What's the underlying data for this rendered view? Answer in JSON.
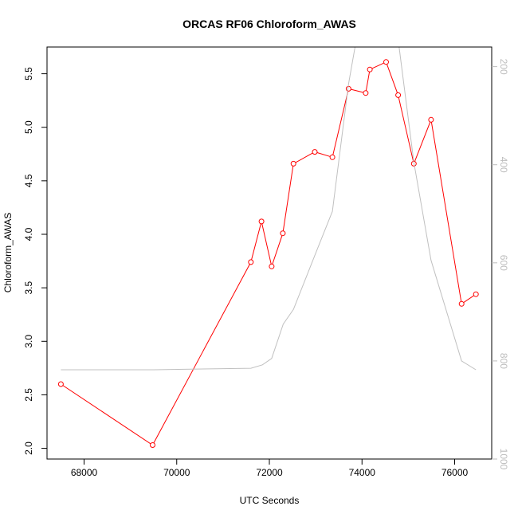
{
  "chart_data": {
    "type": "line",
    "title": "ORCAS RF06 Chloroform_AWAS",
    "xlabel": "UTC Seconds",
    "ylabel": "Chloroform_AWAS",
    "xlim": [
      67200,
      76800
    ],
    "ylim": [
      1.9,
      5.75
    ],
    "xticks": [
      68000,
      70000,
      72000,
      74000,
      76000
    ],
    "yticks": [
      2.0,
      2.5,
      3.0,
      3.5,
      4.0,
      4.5,
      5.0,
      5.5
    ],
    "ytick_labels": [
      "2.0",
      "2.5",
      "3.0",
      "3.5",
      "4.0",
      "4.5",
      "5.0",
      "5.5"
    ],
    "y2lim": [
      1000,
      160
    ],
    "y2ticks": [
      200,
      400,
      600,
      800,
      1000
    ],
    "series": [
      {
        "color": "#ff0000",
        "axis": "left",
        "marker": "open-circle",
        "x": [
          67500,
          69480,
          71600,
          71830,
          72050,
          72290,
          72520,
          72980,
          73360,
          73710,
          74080,
          74170,
          74520,
          74780,
          75120,
          75490,
          76150,
          76460
        ],
        "y": [
          2.6,
          2.03,
          3.74,
          4.12,
          3.7,
          4.01,
          4.66,
          4.77,
          4.72,
          5.36,
          5.32,
          5.54,
          5.61,
          5.3,
          4.66,
          5.07,
          3.35,
          3.44
        ]
      },
      {
        "color": "#c0c0c0",
        "axis": "right",
        "marker": "none",
        "x": [
          67500,
          69500,
          71600,
          71850,
          72050,
          72300,
          72520,
          72980,
          73360,
          73710,
          73850,
          74800,
          75120,
          75490,
          76150,
          76460
        ],
        "y": [
          818,
          818,
          815,
          808,
          795,
          725,
          695,
          585,
          495,
          235,
          160,
          160,
          395,
          595,
          800,
          818
        ]
      }
    ]
  }
}
